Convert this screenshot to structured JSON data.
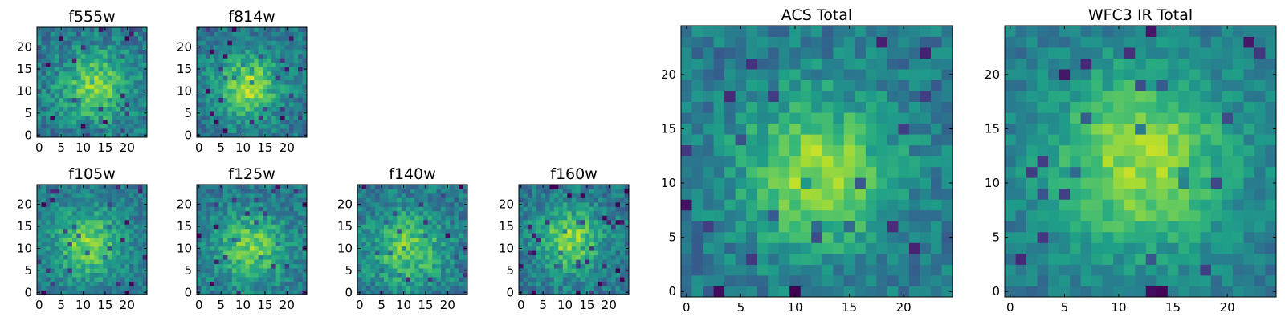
{
  "chart_data": [
    {
      "type": "heatmap",
      "title": "f555w",
      "xticks": [
        0,
        5,
        10,
        15,
        20
      ],
      "yticks": [
        0,
        5,
        10,
        15,
        20
      ],
      "xlim": [
        -0.5,
        24.5
      ],
      "ylim": [
        -0.5,
        24.5
      ],
      "shape": [
        25,
        25
      ],
      "center": [
        13,
        11
      ],
      "spread": 5.5,
      "peak": 0.78,
      "noise": 0.16,
      "seed": 11,
      "colormap": "viridis"
    },
    {
      "type": "heatmap",
      "title": "f814w",
      "xticks": [
        0,
        5,
        10,
        15,
        20
      ],
      "yticks": [
        0,
        5,
        10,
        15,
        20
      ],
      "xlim": [
        -0.5,
        24.5
      ],
      "ylim": [
        -0.5,
        24.5
      ],
      "shape": [
        25,
        25
      ],
      "center": [
        11,
        11
      ],
      "spread": 5,
      "peak": 0.85,
      "noise": 0.14,
      "seed": 23,
      "colormap": "viridis"
    },
    {
      "type": "heatmap",
      "title": "f105w",
      "xticks": [
        0,
        5,
        10,
        15,
        20
      ],
      "yticks": [
        0,
        5,
        10,
        15,
        20
      ],
      "xlim": [
        -0.5,
        24.5
      ],
      "ylim": [
        -0.5,
        24.5
      ],
      "shape": [
        25,
        25
      ],
      "center": [
        11,
        11
      ],
      "spread": 5.5,
      "peak": 0.8,
      "noise": 0.13,
      "seed": 37,
      "colormap": "viridis"
    },
    {
      "type": "heatmap",
      "title": "f125w",
      "xticks": [
        0,
        5,
        10,
        15,
        20
      ],
      "yticks": [
        0,
        5,
        10,
        15,
        20
      ],
      "xlim": [
        -0.5,
        24.5
      ],
      "ylim": [
        -0.5,
        24.5
      ],
      "shape": [
        25,
        25
      ],
      "center": [
        12,
        10
      ],
      "spread": 5.5,
      "peak": 0.78,
      "noise": 0.14,
      "seed": 41,
      "colormap": "viridis"
    },
    {
      "type": "heatmap",
      "title": "f140w",
      "xticks": [
        0,
        5,
        10,
        15,
        20
      ],
      "yticks": [
        0,
        5,
        10,
        15,
        20
      ],
      "xlim": [
        -0.5,
        24.5
      ],
      "ylim": [
        -0.5,
        24.5
      ],
      "shape": [
        25,
        25
      ],
      "center": [
        11,
        10
      ],
      "spread": 6,
      "peak": 0.76,
      "noise": 0.15,
      "seed": 53,
      "colormap": "viridis"
    },
    {
      "type": "heatmap",
      "title": "f160w",
      "xticks": [
        0,
        5,
        10,
        15,
        20
      ],
      "yticks": [
        0,
        5,
        10,
        15,
        20
      ],
      "xlim": [
        -0.5,
        24.5
      ],
      "ylim": [
        -0.5,
        24.5
      ],
      "shape": [
        25,
        25
      ],
      "center": [
        11,
        12
      ],
      "spread": 5,
      "peak": 0.82,
      "noise": 0.14,
      "seed": 67,
      "colormap": "viridis"
    },
    {
      "type": "heatmap",
      "title": "ACS Total",
      "xticks": [
        0,
        5,
        10,
        15,
        20
      ],
      "yticks": [
        0,
        5,
        10,
        15,
        20
      ],
      "xlim": [
        -0.5,
        24.5
      ],
      "ylim": [
        -0.5,
        24.5
      ],
      "shape": [
        25,
        25
      ],
      "center": [
        12,
        11
      ],
      "spread": 5,
      "peak": 0.85,
      "noise": 0.13,
      "seed": 79,
      "colormap": "viridis"
    },
    {
      "type": "heatmap",
      "title": "WFC3 IR Total",
      "xticks": [
        0,
        5,
        10,
        15,
        20
      ],
      "yticks": [
        0,
        5,
        10,
        15,
        20
      ],
      "xlim": [
        -0.5,
        24.5
      ],
      "ylim": [
        -0.5,
        24.5
      ],
      "shape": [
        25,
        25
      ],
      "center": [
        12,
        12
      ],
      "spread": 6,
      "peak": 0.85,
      "noise": 0.1,
      "seed": 97,
      "colormap": "viridis"
    }
  ]
}
